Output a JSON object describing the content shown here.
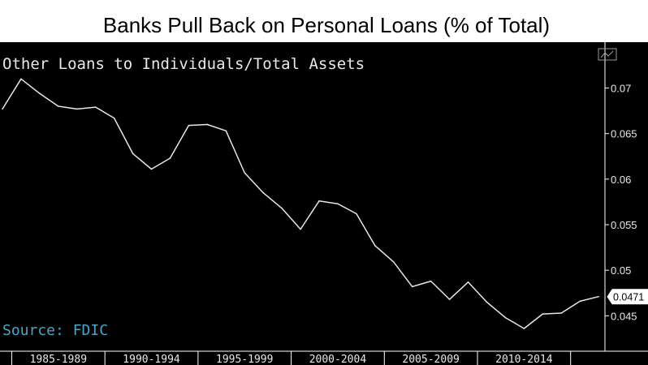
{
  "title": "Banks Pull Back on Personal Loans (% of Total)",
  "chart_data": {
    "type": "line",
    "series_label": "Other Loans to Individuals/Total Assets",
    "source": "Source: FDIC",
    "last_value_label": "0.0471",
    "x": [
      1984,
      1985,
      1986,
      1987,
      1988,
      1989,
      1990,
      1991,
      1992,
      1993,
      1994,
      1995,
      1996,
      1997,
      1998,
      1999,
      2000,
      2001,
      2002,
      2003,
      2004,
      2005,
      2006,
      2007,
      2008,
      2009,
      2010,
      2011,
      2012,
      2013,
      2014,
      2015,
      2016
    ],
    "series": [
      {
        "values": [
          0.0677,
          0.071,
          0.0694,
          0.068,
          0.0677,
          0.0679,
          0.0667,
          0.0628,
          0.0611,
          0.0623,
          0.0659,
          0.066,
          0.0653,
          0.0607,
          0.0585,
          0.0568,
          0.0545,
          0.0576,
          0.0573,
          0.0562,
          0.0527,
          0.0509,
          0.0482,
          0.0488,
          0.0468,
          0.0487,
          0.0465,
          0.0448,
          0.0436,
          0.0452,
          0.0453,
          0.0466,
          0.0471
        ]
      }
    ],
    "ylim": [
      0.0412,
      0.0745
    ],
    "xlim": [
      1984,
      2016.3
    ],
    "y_ticks": [
      0.045,
      0.05,
      0.055,
      0.06,
      0.065,
      0.07
    ],
    "y_tick_labels": [
      "0.045",
      "0.05",
      "0.055",
      "0.06",
      "0.065",
      "0.07"
    ],
    "x_categories": [
      "1985-1989",
      "1990-1994",
      "1995-1999",
      "2000-2004",
      "2005-2009",
      "2010-2014"
    ],
    "x_category_centers": [
      1987,
      1992,
      1997,
      2002,
      2007,
      2012
    ],
    "x_category_dividers": [
      1984.5,
      1989.5,
      1994.5,
      1999.5,
      2004.5,
      2009.5,
      2014.5
    ],
    "colors": {
      "background": "#000000",
      "line": "#e6e6e6",
      "axis": "#ffffff",
      "label_text": "#e8e8e8",
      "source_text": "#4aa6c8",
      "title_text": "#000000"
    },
    "grid": false
  }
}
